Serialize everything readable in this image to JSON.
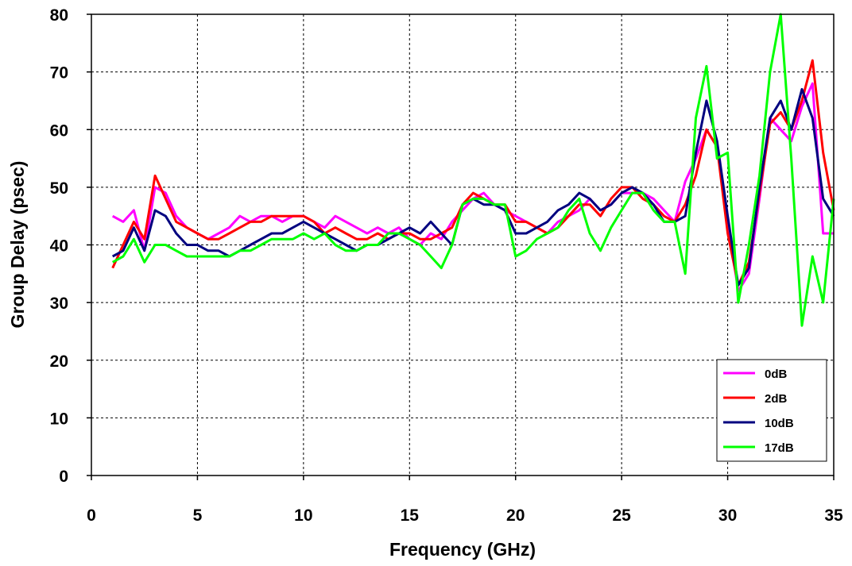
{
  "chart_data": {
    "type": "line",
    "title": "",
    "xlabel": "Frequency (GHz)",
    "ylabel": "Group Delay (psec)",
    "xlim": [
      0,
      35
    ],
    "ylim": [
      0,
      80
    ],
    "xticks": [
      0,
      5,
      10,
      15,
      20,
      25,
      30,
      35
    ],
    "yticks": [
      0,
      10,
      20,
      30,
      40,
      50,
      60,
      70,
      80
    ],
    "grid": true,
    "legend_position": "bottom-right",
    "series": [
      {
        "name": "0dB",
        "color": "#ff00ff",
        "x": [
          1,
          1.5,
          2,
          2.5,
          3,
          3.5,
          4,
          4.5,
          5,
          5.5,
          6,
          6.5,
          7,
          7.5,
          8,
          8.5,
          9,
          9.5,
          10,
          10.5,
          11,
          11.5,
          12,
          12.5,
          13,
          13.5,
          14,
          14.5,
          15,
          15.5,
          16,
          16.5,
          17,
          17.5,
          18,
          18.5,
          19,
          19.5,
          20,
          20.5,
          21,
          21.5,
          22,
          22.5,
          23,
          23.5,
          24,
          24.5,
          25,
          25.5,
          26,
          26.5,
          27,
          27.5,
          28,
          28.5,
          29,
          29.5,
          30,
          30.5,
          31,
          31.5,
          32,
          32.5,
          33,
          33.5,
          34,
          34.5,
          35
        ],
        "y": [
          45,
          44,
          46,
          39,
          50,
          49,
          45,
          43,
          42,
          41,
          42,
          43,
          45,
          44,
          45,
          45,
          44,
          45,
          45,
          44,
          43,
          45,
          44,
          43,
          42,
          43,
          42,
          43,
          41,
          40,
          42,
          41,
          44,
          46,
          48,
          49,
          47,
          46,
          45,
          44,
          43,
          42,
          44,
          45,
          46,
          48,
          46,
          47,
          49,
          49,
          49,
          48,
          46,
          44,
          51,
          55,
          60,
          57,
          44,
          32,
          35,
          48,
          62,
          60,
          58,
          64,
          68,
          42,
          42
        ]
      },
      {
        "name": "2dB",
        "color": "#ff0000",
        "x": [
          1,
          1.5,
          2,
          2.5,
          3,
          3.5,
          4,
          4.5,
          5,
          5.5,
          6,
          6.5,
          7,
          7.5,
          8,
          8.5,
          9,
          9.5,
          10,
          10.5,
          11,
          11.5,
          12,
          12.5,
          13,
          13.5,
          14,
          14.5,
          15,
          15.5,
          16,
          16.5,
          17,
          17.5,
          18,
          18.5,
          19,
          19.5,
          20,
          20.5,
          21,
          21.5,
          22,
          22.5,
          23,
          23.5,
          24,
          24.5,
          25,
          25.5,
          26,
          26.5,
          27,
          27.5,
          28,
          28.5,
          29,
          29.5,
          30,
          30.5,
          31,
          31.5,
          32,
          32.5,
          33,
          33.5,
          34,
          34.5,
          35
        ],
        "y": [
          36,
          40,
          44,
          41,
          52,
          48,
          44,
          43,
          42,
          41,
          41,
          42,
          43,
          44,
          44,
          45,
          45,
          45,
          45,
          44,
          42,
          43,
          42,
          41,
          41,
          42,
          41,
          42,
          42,
          41,
          41,
          42,
          43,
          47,
          49,
          48,
          47,
          47,
          44,
          44,
          43,
          42,
          43,
          45,
          47,
          47,
          45,
          48,
          50,
          50,
          48,
          47,
          45,
          44,
          47,
          52,
          60,
          57,
          42,
          33,
          37,
          49,
          61,
          63,
          60,
          65,
          72,
          56,
          46
        ]
      },
      {
        "name": "10dB",
        "color": "#00007f",
        "x": [
          1,
          1.5,
          2,
          2.5,
          3,
          3.5,
          4,
          4.5,
          5,
          5.5,
          6,
          6.5,
          7,
          7.5,
          8,
          8.5,
          9,
          9.5,
          10,
          10.5,
          11,
          11.5,
          12,
          12.5,
          13,
          13.5,
          14,
          14.5,
          15,
          15.5,
          16,
          16.5,
          17,
          17.5,
          18,
          18.5,
          19,
          19.5,
          20,
          20.5,
          21,
          21.5,
          22,
          22.5,
          23,
          23.5,
          24,
          24.5,
          25,
          25.5,
          26,
          26.5,
          27,
          27.5,
          28,
          28.5,
          29,
          29.5,
          30,
          30.5,
          31,
          31.5,
          32,
          32.5,
          33,
          33.5,
          34,
          34.5,
          35
        ],
        "y": [
          38,
          39,
          43,
          39,
          46,
          45,
          42,
          40,
          40,
          39,
          39,
          38,
          39,
          40,
          41,
          42,
          42,
          43,
          44,
          43,
          42,
          41,
          40,
          39,
          40,
          40,
          41,
          42,
          43,
          42,
          44,
          42,
          40,
          47,
          48,
          47,
          47,
          46,
          42,
          42,
          43,
          44,
          46,
          47,
          49,
          48,
          46,
          47,
          49,
          50,
          49,
          47,
          44,
          44,
          45,
          56,
          65,
          58,
          45,
          33,
          36,
          50,
          62,
          65,
          60,
          67,
          62,
          48,
          45
        ]
      },
      {
        "name": "17dB",
        "color": "#00ff00",
        "x": [
          1,
          1.5,
          2,
          2.5,
          3,
          3.5,
          4,
          4.5,
          5,
          5.5,
          6,
          6.5,
          7,
          7.5,
          8,
          8.5,
          9,
          9.5,
          10,
          10.5,
          11,
          11.5,
          12,
          12.5,
          13,
          13.5,
          14,
          14.5,
          15,
          15.5,
          16,
          16.5,
          17,
          17.5,
          18,
          18.5,
          19,
          19.5,
          20,
          20.5,
          21,
          21.5,
          22,
          22.5,
          23,
          23.5,
          24,
          24.5,
          25,
          25.5,
          26,
          26.5,
          27,
          27.5,
          28,
          28.5,
          29,
          29.5,
          30,
          30.5,
          31,
          31.5,
          32,
          32.5,
          33,
          33.5,
          34,
          34.5,
          35
        ],
        "y": [
          37,
          38,
          41,
          37,
          40,
          40,
          39,
          38,
          38,
          38,
          38,
          38,
          39,
          39,
          40,
          41,
          41,
          41,
          42,
          41,
          42,
          40,
          39,
          39,
          40,
          40,
          42,
          42,
          41,
          40,
          38,
          36,
          40,
          47,
          48,
          48,
          47,
          47,
          38,
          39,
          41,
          42,
          43,
          46,
          48,
          42,
          39,
          43,
          46,
          49,
          49,
          46,
          44,
          44,
          35,
          62,
          71,
          55,
          56,
          30,
          40,
          52,
          70,
          80,
          55,
          26,
          38,
          30,
          48
        ]
      }
    ]
  }
}
